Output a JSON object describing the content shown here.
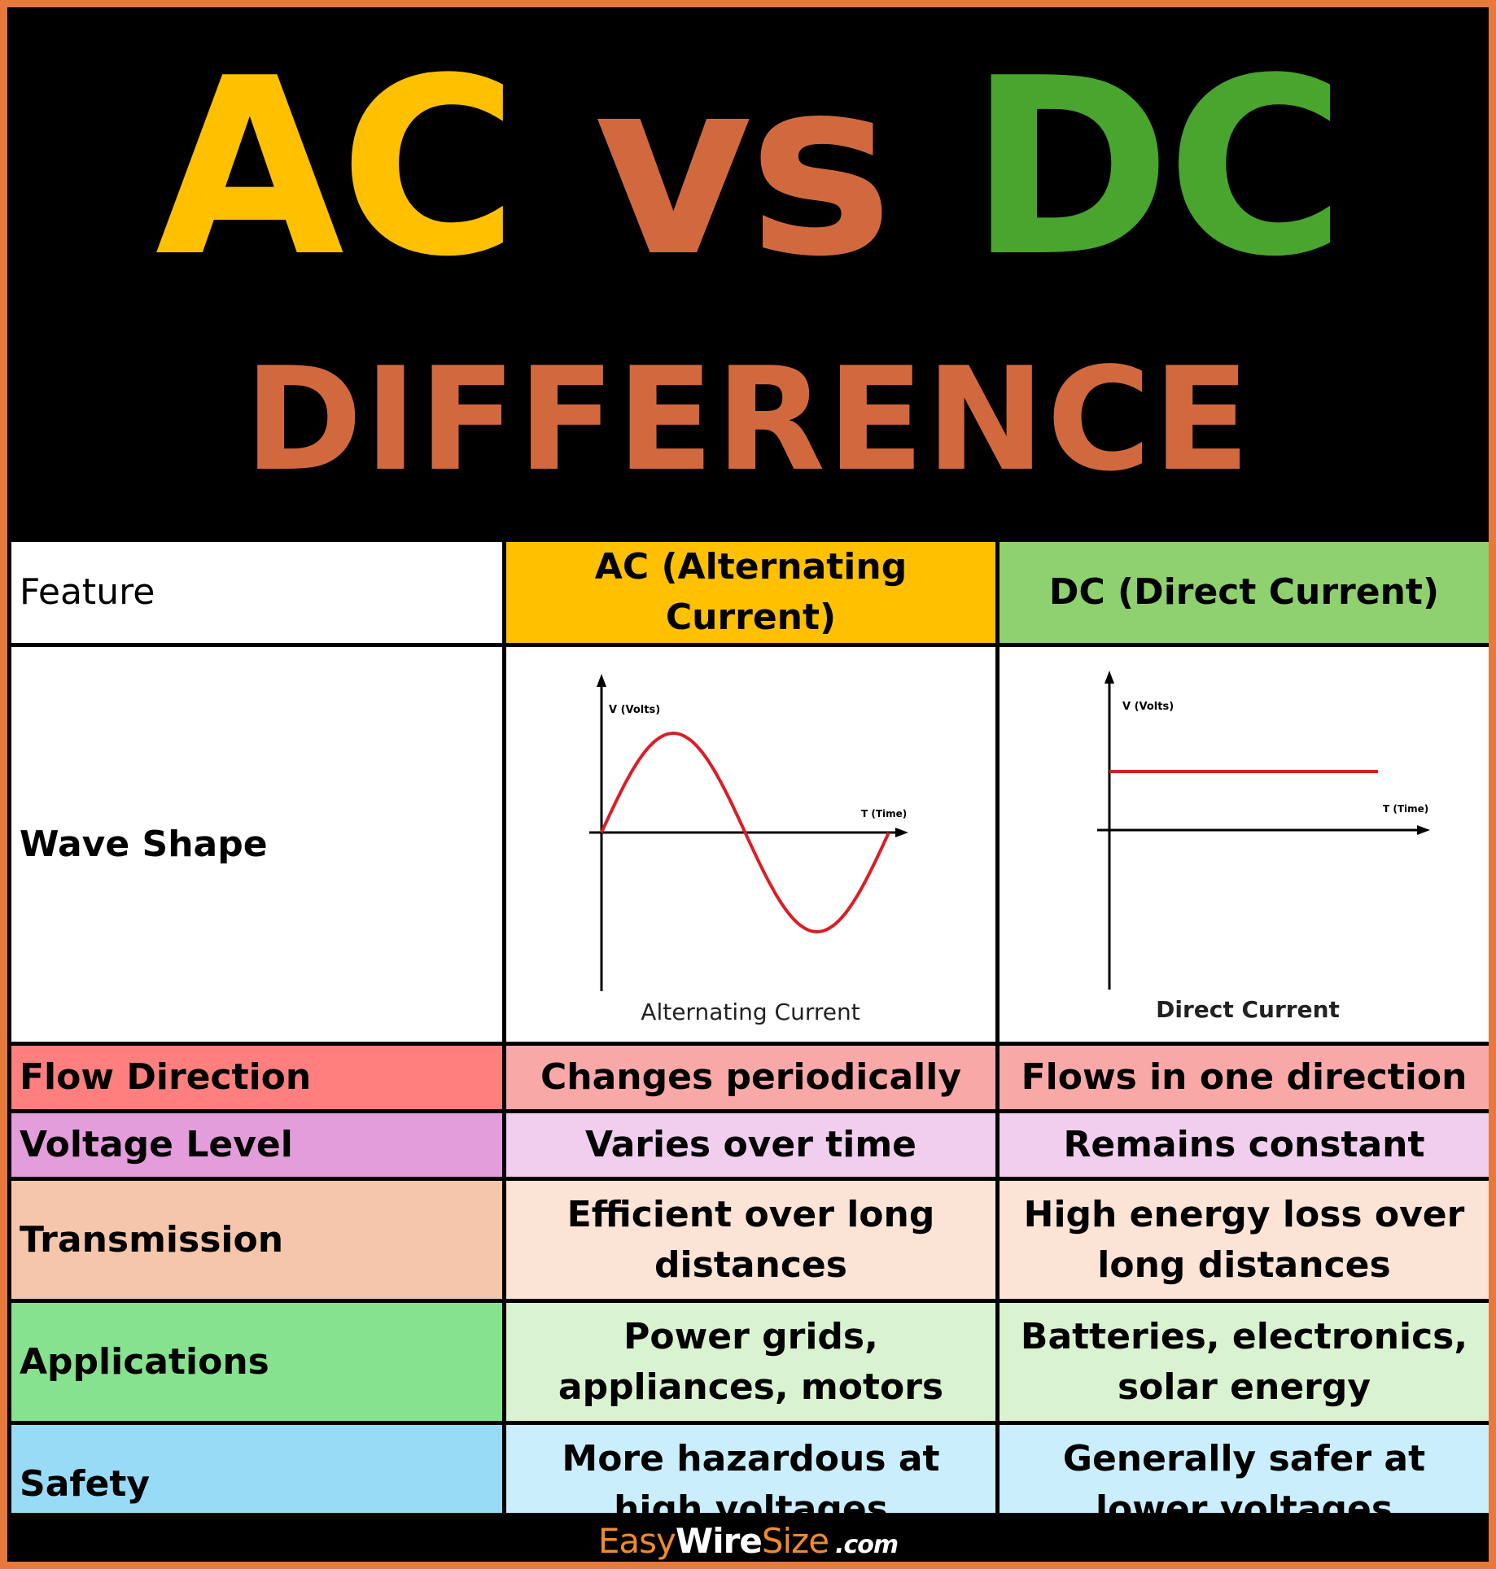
{
  "title": {
    "ac": "AC",
    "vs": "vs",
    "dc": "DC",
    "subtitle": "DIFFERENCE"
  },
  "colors": {
    "ac": "#ffc000",
    "vs": "#d2693e",
    "dc": "#4aa52e",
    "border": "#e8793c"
  },
  "table": {
    "headers": {
      "feature": "Feature",
      "ac": "AC (Alternating Current)",
      "dc": "DC (Direct Current)"
    },
    "wave_row_label": "Wave Shape",
    "ac_graph": {
      "y_label": "V (Volts)",
      "x_label": "T (Time)",
      "caption": "Alternating Current"
    },
    "dc_graph": {
      "y_label": "V (Volts)",
      "x_label": "T (Time)",
      "caption": "Direct Current"
    },
    "rows": [
      {
        "feature": "Flow Direction",
        "ac": "Changes periodically",
        "dc": "Flows in one direction",
        "feature_bg": "#ff7f7f",
        "cell_bg": "#f9a8a8"
      },
      {
        "feature": "Voltage Level",
        "ac": "Varies over time",
        "dc": "Remains constant",
        "feature_bg": "#e39ddb",
        "cell_bg": "#f1cdee"
      },
      {
        "feature": "Transmission",
        "ac": "Efficient over long distances",
        "dc": "High energy loss over long distances",
        "feature_bg": "#f5c6ab",
        "cell_bg": "#fbe3d6"
      },
      {
        "feature": "Applications",
        "ac": "Power grids, appliances, motors",
        "dc": "Batteries, electronics, solar energy",
        "feature_bg": "#86e28e",
        "cell_bg": "#d9f2d0"
      },
      {
        "feature": "Safety",
        "ac": "More hazardous at high voltages",
        "dc": "Generally safer at lower voltages",
        "feature_bg": "#98dbf6",
        "cell_bg": "#caeefb"
      }
    ]
  },
  "footer": {
    "easy": "Easy",
    "wire": "Wire",
    "size": "Size",
    "com": ".com"
  }
}
